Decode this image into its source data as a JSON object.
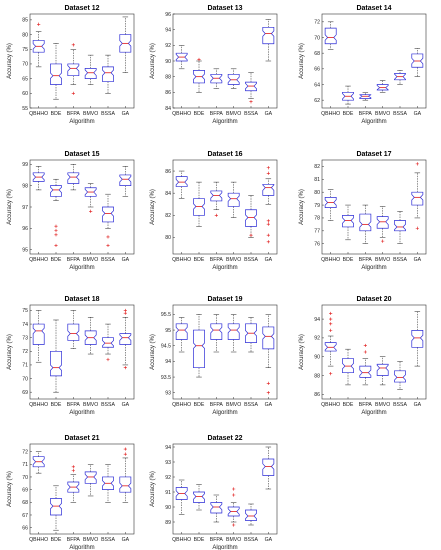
{
  "colors": {
    "box": "#2b2bd6",
    "median": "#e01818",
    "whisker": "#222222",
    "outlier": "#e01818",
    "axis": "#333333"
  },
  "chart_data": [
    {
      "type": "box",
      "title": "Dataset 12",
      "xlabel": "Algorithm",
      "ylabel": "Accuracy (%)",
      "categories": [
        "QBHHO",
        "BDE",
        "BFPA",
        "BMVO",
        "BSSA",
        "GA"
      ],
      "ylim": [
        55,
        87
      ],
      "yticks": [
        55,
        60,
        65,
        70,
        75,
        80,
        85
      ],
      "ytick_labels": [
        "55",
        "60",
        "65",
        "70",
        "75",
        "80",
        "85"
      ],
      "boxes": [
        {
          "min": 69,
          "q1": 74,
          "median": 76,
          "q3": 78,
          "max": 81,
          "outliers": [
            83.5
          ]
        },
        {
          "min": 58,
          "q1": 63,
          "median": 66,
          "q3": 70,
          "max": 77,
          "outliers": []
        },
        {
          "min": 63,
          "q1": 66,
          "median": 68.5,
          "q3": 70,
          "max": 75,
          "outliers": [
            60,
            76.5
          ]
        },
        {
          "min": 63,
          "q1": 65,
          "median": 67,
          "q3": 68.5,
          "max": 73,
          "outliers": []
        },
        {
          "min": 60,
          "q1": 64,
          "median": 67,
          "q3": 69,
          "max": 73,
          "outliers": []
        },
        {
          "min": 67,
          "q1": 74,
          "median": 77,
          "q3": 80,
          "max": 86,
          "outliers": []
        }
      ]
    },
    {
      "type": "box",
      "title": "Dataset 13",
      "xlabel": "Algorithm",
      "ylabel": "Accuracy (%)",
      "categories": [
        "QBHHO",
        "BDE",
        "BFPA",
        "BMVO",
        "BSSA",
        "GA"
      ],
      "ylim": [
        84,
        96
      ],
      "yticks": [
        84,
        86,
        88,
        90,
        92,
        94,
        96
      ],
      "ytick_labels": [
        "84",
        "86",
        "88",
        "90",
        "92",
        "94",
        "96"
      ],
      "boxes": [
        {
          "min": 89,
          "q1": 90,
          "median": 90.5,
          "q3": 91,
          "max": 92,
          "outliers": []
        },
        {
          "min": 86,
          "q1": 87.2,
          "median": 88,
          "q3": 88.8,
          "max": 90,
          "outliers": [
            90.2
          ]
        },
        {
          "min": 86.5,
          "q1": 87.2,
          "median": 87.8,
          "q3": 88.3,
          "max": 89,
          "outliers": []
        },
        {
          "min": 86.5,
          "q1": 87,
          "median": 87.6,
          "q3": 88.3,
          "max": 89,
          "outliers": []
        },
        {
          "min": 85.2,
          "q1": 86.2,
          "median": 86.8,
          "q3": 87.3,
          "max": 88.5,
          "outliers": [
            84.8
          ]
        },
        {
          "min": 90,
          "q1": 92.2,
          "median": 93.5,
          "q3": 94.3,
          "max": 95.3,
          "outliers": []
        }
      ]
    },
    {
      "type": "box",
      "title": "Dataset 14",
      "xlabel": "Algorithm",
      "ylabel": "Accuracy (%)",
      "categories": [
        "QBHHO",
        "BDE",
        "BFPA",
        "BMVO",
        "BSSA",
        "GA"
      ],
      "ylim": [
        61,
        73
      ],
      "yticks": [
        62,
        64,
        66,
        68,
        70,
        72
      ],
      "ytick_labels": [
        "62",
        "64",
        "66",
        "68",
        "70",
        "72"
      ],
      "boxes": [
        {
          "min": 68.5,
          "q1": 69.2,
          "median": 70,
          "q3": 71.2,
          "max": 72,
          "outliers": []
        },
        {
          "min": 61.5,
          "q1": 62,
          "median": 62.5,
          "q3": 63,
          "max": 63.8,
          "outliers": []
        },
        {
          "min": 62,
          "q1": 62.2,
          "median": 62.5,
          "q3": 62.7,
          "max": 63,
          "outliers": []
        },
        {
          "min": 63,
          "q1": 63.3,
          "median": 63.6,
          "q3": 64,
          "max": 64.5,
          "outliers": []
        },
        {
          "min": 64,
          "q1": 64.6,
          "median": 65,
          "q3": 65.4,
          "max": 65.8,
          "outliers": []
        },
        {
          "min": 65,
          "q1": 66.2,
          "median": 67,
          "q3": 67.9,
          "max": 68.6,
          "outliers": []
        }
      ]
    },
    {
      "type": "box",
      "title": "Dataset 15",
      "xlabel": "Algorithm",
      "ylabel": "Accuracy (%)",
      "categories": [
        "QBHHO",
        "BDE",
        "BFPA",
        "BMVO",
        "BSSA",
        "GA"
      ],
      "ylim": [
        94.8,
        99.2
      ],
      "yticks": [
        95,
        96,
        97,
        98,
        99
      ],
      "ytick_labels": [
        "95",
        "96",
        "97",
        "98",
        "99"
      ],
      "boxes": [
        {
          "min": 97.8,
          "q1": 98.2,
          "median": 98.4,
          "q3": 98.6,
          "max": 98.9,
          "outliers": []
        },
        {
          "min": 97.3,
          "q1": 97.5,
          "median": 97.8,
          "q3": 98,
          "max": 98.3,
          "outliers": [
            96.1,
            95.9,
            95.7,
            95.2
          ]
        },
        {
          "min": 97.8,
          "q1": 98.1,
          "median": 98.4,
          "q3": 98.6,
          "max": 99,
          "outliers": []
        },
        {
          "min": 97,
          "q1": 97.5,
          "median": 97.7,
          "q3": 97.9,
          "max": 98.1,
          "outliers": [
            96.8
          ]
        },
        {
          "min": 96,
          "q1": 96.3,
          "median": 96.7,
          "q3": 97,
          "max": 97.6,
          "outliers": [
            95.2,
            95.6
          ]
        },
        {
          "min": 97.5,
          "q1": 98,
          "median": 98.3,
          "q3": 98.5,
          "max": 98.9,
          "outliers": []
        }
      ]
    },
    {
      "type": "box",
      "title": "Dataset 16",
      "xlabel": "Algorithm",
      "ylabel": "Accuracy (%)",
      "categories": [
        "QBHHO",
        "BDE",
        "BFPA",
        "BMVO",
        "BSSA",
        "GA"
      ],
      "ylim": [
        78.5,
        87
      ],
      "yticks": [
        80,
        82,
        84,
        86
      ],
      "ytick_labels": [
        "80",
        "82",
        "84",
        "86"
      ],
      "boxes": [
        {
          "min": 83.5,
          "q1": 84.6,
          "median": 85,
          "q3": 85.5,
          "max": 86,
          "outliers": []
        },
        {
          "min": 81,
          "q1": 82,
          "median": 82.8,
          "q3": 83.5,
          "max": 85,
          "outliers": []
        },
        {
          "min": 82.5,
          "q1": 83.3,
          "median": 83.8,
          "q3": 84.2,
          "max": 85,
          "outliers": [
            82
          ]
        },
        {
          "min": 81.8,
          "q1": 82.8,
          "median": 83.5,
          "q3": 84,
          "max": 85,
          "outliers": []
        },
        {
          "min": 80,
          "q1": 81,
          "median": 81.8,
          "q3": 82.5,
          "max": 83.8,
          "outliers": [
            80.2
          ]
        },
        {
          "min": 83,
          "q1": 83.8,
          "median": 84.5,
          "q3": 84.8,
          "max": 85.3,
          "outliers": [
            81.5,
            81.2,
            80.2,
            79.6,
            86.3,
            85.8
          ]
        }
      ]
    },
    {
      "type": "box",
      "title": "Dataset 17",
      "xlabel": "Algorithm",
      "ylabel": "Accuracy (%)",
      "categories": [
        "QBHHO",
        "BDE",
        "BFPA",
        "BMVO",
        "BSSA",
        "GA"
      ],
      "ylim": [
        75.2,
        82.5
      ],
      "yticks": [
        76,
        77,
        78,
        79,
        80,
        81,
        82
      ],
      "ytick_labels": [
        "76",
        "77",
        "78",
        "79",
        "80",
        "81",
        "82"
      ],
      "boxes": [
        {
          "min": 77.8,
          "q1": 78.8,
          "median": 79.2,
          "q3": 79.6,
          "max": 80.2,
          "outliers": []
        },
        {
          "min": 76.3,
          "q1": 77.3,
          "median": 77.8,
          "q3": 78.2,
          "max": 79,
          "outliers": []
        },
        {
          "min": 76,
          "q1": 77,
          "median": 77.5,
          "q3": 78.3,
          "max": 79,
          "outliers": []
        },
        {
          "min": 76.5,
          "q1": 77.2,
          "median": 77.7,
          "q3": 78.1,
          "max": 78.9,
          "outliers": [
            76.2
          ]
        },
        {
          "min": 76,
          "q1": 77,
          "median": 77.3,
          "q3": 77.8,
          "max": 78.5,
          "outliers": []
        },
        {
          "min": 78,
          "q1": 79,
          "median": 79.6,
          "q3": 80,
          "max": 81.5,
          "outliers": [
            77.2,
            82.2
          ]
        }
      ]
    },
    {
      "type": "box",
      "title": "Dataset 18",
      "xlabel": "Algorithm",
      "ylabel": "Accuracy (%)",
      "categories": [
        "QBHHO",
        "BDE",
        "BFPA",
        "BMVO",
        "BSSA",
        "GA"
      ],
      "ylim": [
        68.5,
        75.4
      ],
      "yticks": [
        69,
        70,
        71,
        72,
        73,
        74,
        75
      ],
      "ytick_labels": [
        "69",
        "70",
        "71",
        "72",
        "73",
        "74",
        "75"
      ],
      "boxes": [
        {
          "min": 71.2,
          "q1": 72.5,
          "median": 73.5,
          "q3": 74,
          "max": 75,
          "outliers": []
        },
        {
          "min": 69,
          "q1": 70.2,
          "median": 70.8,
          "q3": 72,
          "max": 74.3,
          "outliers": []
        },
        {
          "min": 72.2,
          "q1": 72.8,
          "median": 73.3,
          "q3": 74,
          "max": 75,
          "outliers": []
        },
        {
          "min": 71.8,
          "q1": 72.5,
          "median": 73,
          "q3": 73.5,
          "max": 74.5,
          "outliers": []
        },
        {
          "min": 71.8,
          "q1": 72.3,
          "median": 72.6,
          "q3": 73,
          "max": 74,
          "outliers": [
            71.4
          ]
        },
        {
          "min": 71,
          "q1": 72.5,
          "median": 73,
          "q3": 73.3,
          "max": 74.5,
          "outliers": [
            70.8,
            74.8,
            75
          ]
        }
      ]
    },
    {
      "type": "box",
      "title": "Dataset 19",
      "xlabel": "Algorithm",
      "ylabel": "Accuracy (%)",
      "categories": [
        "QBHHO",
        "BDE",
        "BFPA",
        "BMVO",
        "BSSA",
        "GA"
      ],
      "ylim": [
        92.8,
        95.8
      ],
      "yticks": [
        93,
        93.5,
        94,
        94.5,
        95,
        95.5
      ],
      "ytick_labels": [
        "93",
        "93.5",
        "94",
        "94.5",
        "95",
        "95.5"
      ],
      "boxes": [
        {
          "min": 94.3,
          "q1": 94.7,
          "median": 95,
          "q3": 95.2,
          "max": 95.4,
          "outliers": []
        },
        {
          "min": 93.5,
          "q1": 93.8,
          "median": 94.5,
          "q3": 95,
          "max": 95.5,
          "outliers": []
        },
        {
          "min": 94.3,
          "q1": 94.7,
          "median": 95,
          "q3": 95.2,
          "max": 95.5,
          "outliers": []
        },
        {
          "min": 94.3,
          "q1": 94.7,
          "median": 95,
          "q3": 95.2,
          "max": 95.5,
          "outliers": []
        },
        {
          "min": 94.3,
          "q1": 94.6,
          "median": 94.9,
          "q3": 95.2,
          "max": 95.4,
          "outliers": []
        },
        {
          "min": 93.8,
          "q1": 94.4,
          "median": 94.8,
          "q3": 95.1,
          "max": 95.5,
          "outliers": [
            93.3,
            93
          ]
        }
      ]
    },
    {
      "type": "box",
      "title": "Dataset 20",
      "xlabel": "Algorithm",
      "ylabel": "Accuracy (%)",
      "categories": [
        "QBHHO",
        "BDE",
        "BFPA",
        "BMVO",
        "BSSA",
        "GA"
      ],
      "ylim": [
        85.5,
        95.5
      ],
      "yticks": [
        86,
        88,
        90,
        92,
        94
      ],
      "ytick_labels": [
        "86",
        "88",
        "90",
        "92",
        "94"
      ],
      "boxes": [
        {
          "min": 89,
          "q1": 90.6,
          "median": 91,
          "q3": 91.5,
          "max": 92.2,
          "outliers": [
            92.8,
            93.5,
            94,
            94.6,
            88.2
          ]
        },
        {
          "min": 87,
          "q1": 88.3,
          "median": 89,
          "q3": 89.8,
          "max": 90.8,
          "outliers": []
        },
        {
          "min": 87,
          "q1": 87.8,
          "median": 88.3,
          "q3": 89,
          "max": 89.8,
          "outliers": [
            90.5,
            91.2
          ]
        },
        {
          "min": 87,
          "q1": 88,
          "median": 88.8,
          "q3": 89.2,
          "max": 90,
          "outliers": []
        },
        {
          "min": 86.5,
          "q1": 87.3,
          "median": 87.8,
          "q3": 88.5,
          "max": 89.5,
          "outliers": []
        },
        {
          "min": 89,
          "q1": 91,
          "median": 92,
          "q3": 92.8,
          "max": 94.8,
          "outliers": []
        }
      ]
    },
    {
      "type": "box",
      "title": "Dataset 21",
      "xlabel": "Algorithm",
      "ylabel": "Accuracy (%)",
      "categories": [
        "QBHHO",
        "BDE",
        "BFPA",
        "BMVO",
        "BSSA",
        "GA"
      ],
      "ylim": [
        65.5,
        72.6
      ],
      "yticks": [
        66,
        67,
        68,
        69,
        70,
        71,
        72
      ],
      "ytick_labels": [
        "66",
        "67",
        "68",
        "69",
        "70",
        "71",
        "72"
      ],
      "boxes": [
        {
          "min": 70.3,
          "q1": 70.8,
          "median": 71.2,
          "q3": 71.6,
          "max": 72,
          "outliers": []
        },
        {
          "min": 65.8,
          "q1": 67,
          "median": 67.7,
          "q3": 68.3,
          "max": 69.3,
          "outliers": []
        },
        {
          "min": 68,
          "q1": 68.8,
          "median": 69.2,
          "q3": 69.6,
          "max": 70.2,
          "outliers": [
            70.5,
            70.8
          ]
        },
        {
          "min": 68.5,
          "q1": 69.5,
          "median": 70,
          "q3": 70.4,
          "max": 71,
          "outliers": []
        },
        {
          "min": 68,
          "q1": 69,
          "median": 69.5,
          "q3": 70,
          "max": 71,
          "outliers": []
        },
        {
          "min": 68,
          "q1": 68.8,
          "median": 69.3,
          "q3": 70,
          "max": 71.5,
          "outliers": [
            71.8,
            72.2
          ]
        }
      ]
    },
    {
      "type": "box",
      "title": "Dataset 22",
      "xlabel": "Algorithm",
      "ylabel": "Accuracy (%)",
      "categories": [
        "QBHHO",
        "BDE",
        "BFPA",
        "BMVO",
        "BSSA",
        "GA"
      ],
      "ylim": [
        88.2,
        94.2
      ],
      "yticks": [
        89,
        90,
        91,
        92,
        93,
        94
      ],
      "ytick_labels": [
        "89",
        "90",
        "91",
        "92",
        "93",
        "94"
      ],
      "boxes": [
        {
          "min": 89.5,
          "q1": 90.5,
          "median": 90.9,
          "q3": 91.3,
          "max": 91.8,
          "outliers": []
        },
        {
          "min": 89.8,
          "q1": 90.3,
          "median": 90.7,
          "q3": 91,
          "max": 91.5,
          "outliers": []
        },
        {
          "min": 89,
          "q1": 89.6,
          "median": 90,
          "q3": 90.3,
          "max": 90.8,
          "outliers": []
        },
        {
          "min": 89,
          "q1": 89.4,
          "median": 89.7,
          "q3": 90,
          "max": 90.3,
          "outliers": [
            88.8,
            90.8,
            91.2
          ]
        },
        {
          "min": 88.8,
          "q1": 89.1,
          "median": 89.4,
          "q3": 89.8,
          "max": 90.2,
          "outliers": []
        },
        {
          "min": 91.2,
          "q1": 92.1,
          "median": 92.7,
          "q3": 93.2,
          "max": 94,
          "outliers": []
        }
      ]
    }
  ]
}
